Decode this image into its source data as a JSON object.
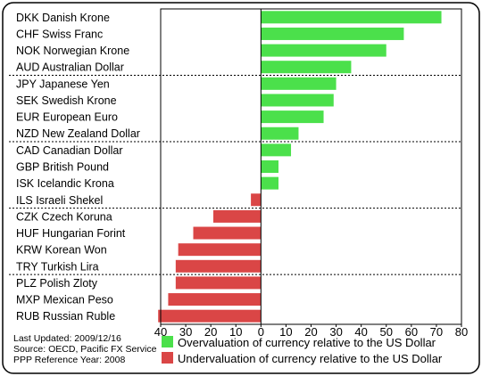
{
  "chart_data": {
    "type": "bar",
    "orientation": "horizontal",
    "categories": [
      "DKK Danish Krone",
      "CHF Swiss Franc",
      "NOK Norwegian Krone",
      "AUD Australian Dollar",
      "JPY Japanese Yen",
      "SEK Swedish Krone",
      "EUR European Euro",
      "NZD New Zealand Dollar",
      "CAD Canadian Dollar",
      "GBP British Pound",
      "ISK Icelandic Krona",
      "ILS Israeli Shekel",
      "CZK Czech Koruna",
      "HUF Hungarian Forint",
      "KRW Korean Won",
      "TRY Turkish Lira",
      "PLZ Polish Zloty",
      "MXP Mexican Peso",
      "RUB Russian Ruble"
    ],
    "values": [
      72,
      57,
      50,
      36,
      30,
      29,
      25,
      15,
      12,
      7,
      7,
      -4,
      -19,
      -27,
      -33,
      -34,
      -34,
      -37,
      -41
    ],
    "x_tick_labels": [
      "40",
      "30",
      "20",
      "10",
      "0",
      "10",
      "20",
      "30",
      "40",
      "50",
      "60",
      "70",
      "80"
    ],
    "xlim": [
      -40,
      80
    ],
    "grid": "dotted separators every 4 rows",
    "legend": {
      "position": "bottom",
      "entries": [
        {
          "label": "Overvaluation of currency relative to the US Dollar",
          "color": "#4be04b"
        },
        {
          "label": "Undervaluation of currency relative to the US Dollar",
          "color": "#da4646"
        }
      ]
    },
    "colors": {
      "positive": "#4be04b",
      "negative": "#da4646",
      "frame": "#000000"
    }
  },
  "footnote": {
    "line1": "Last Updated: 2009/12/16",
    "line2": "Source: OECD, Pacific FX Service",
    "line3": "PPP Reference Year: 2008"
  }
}
